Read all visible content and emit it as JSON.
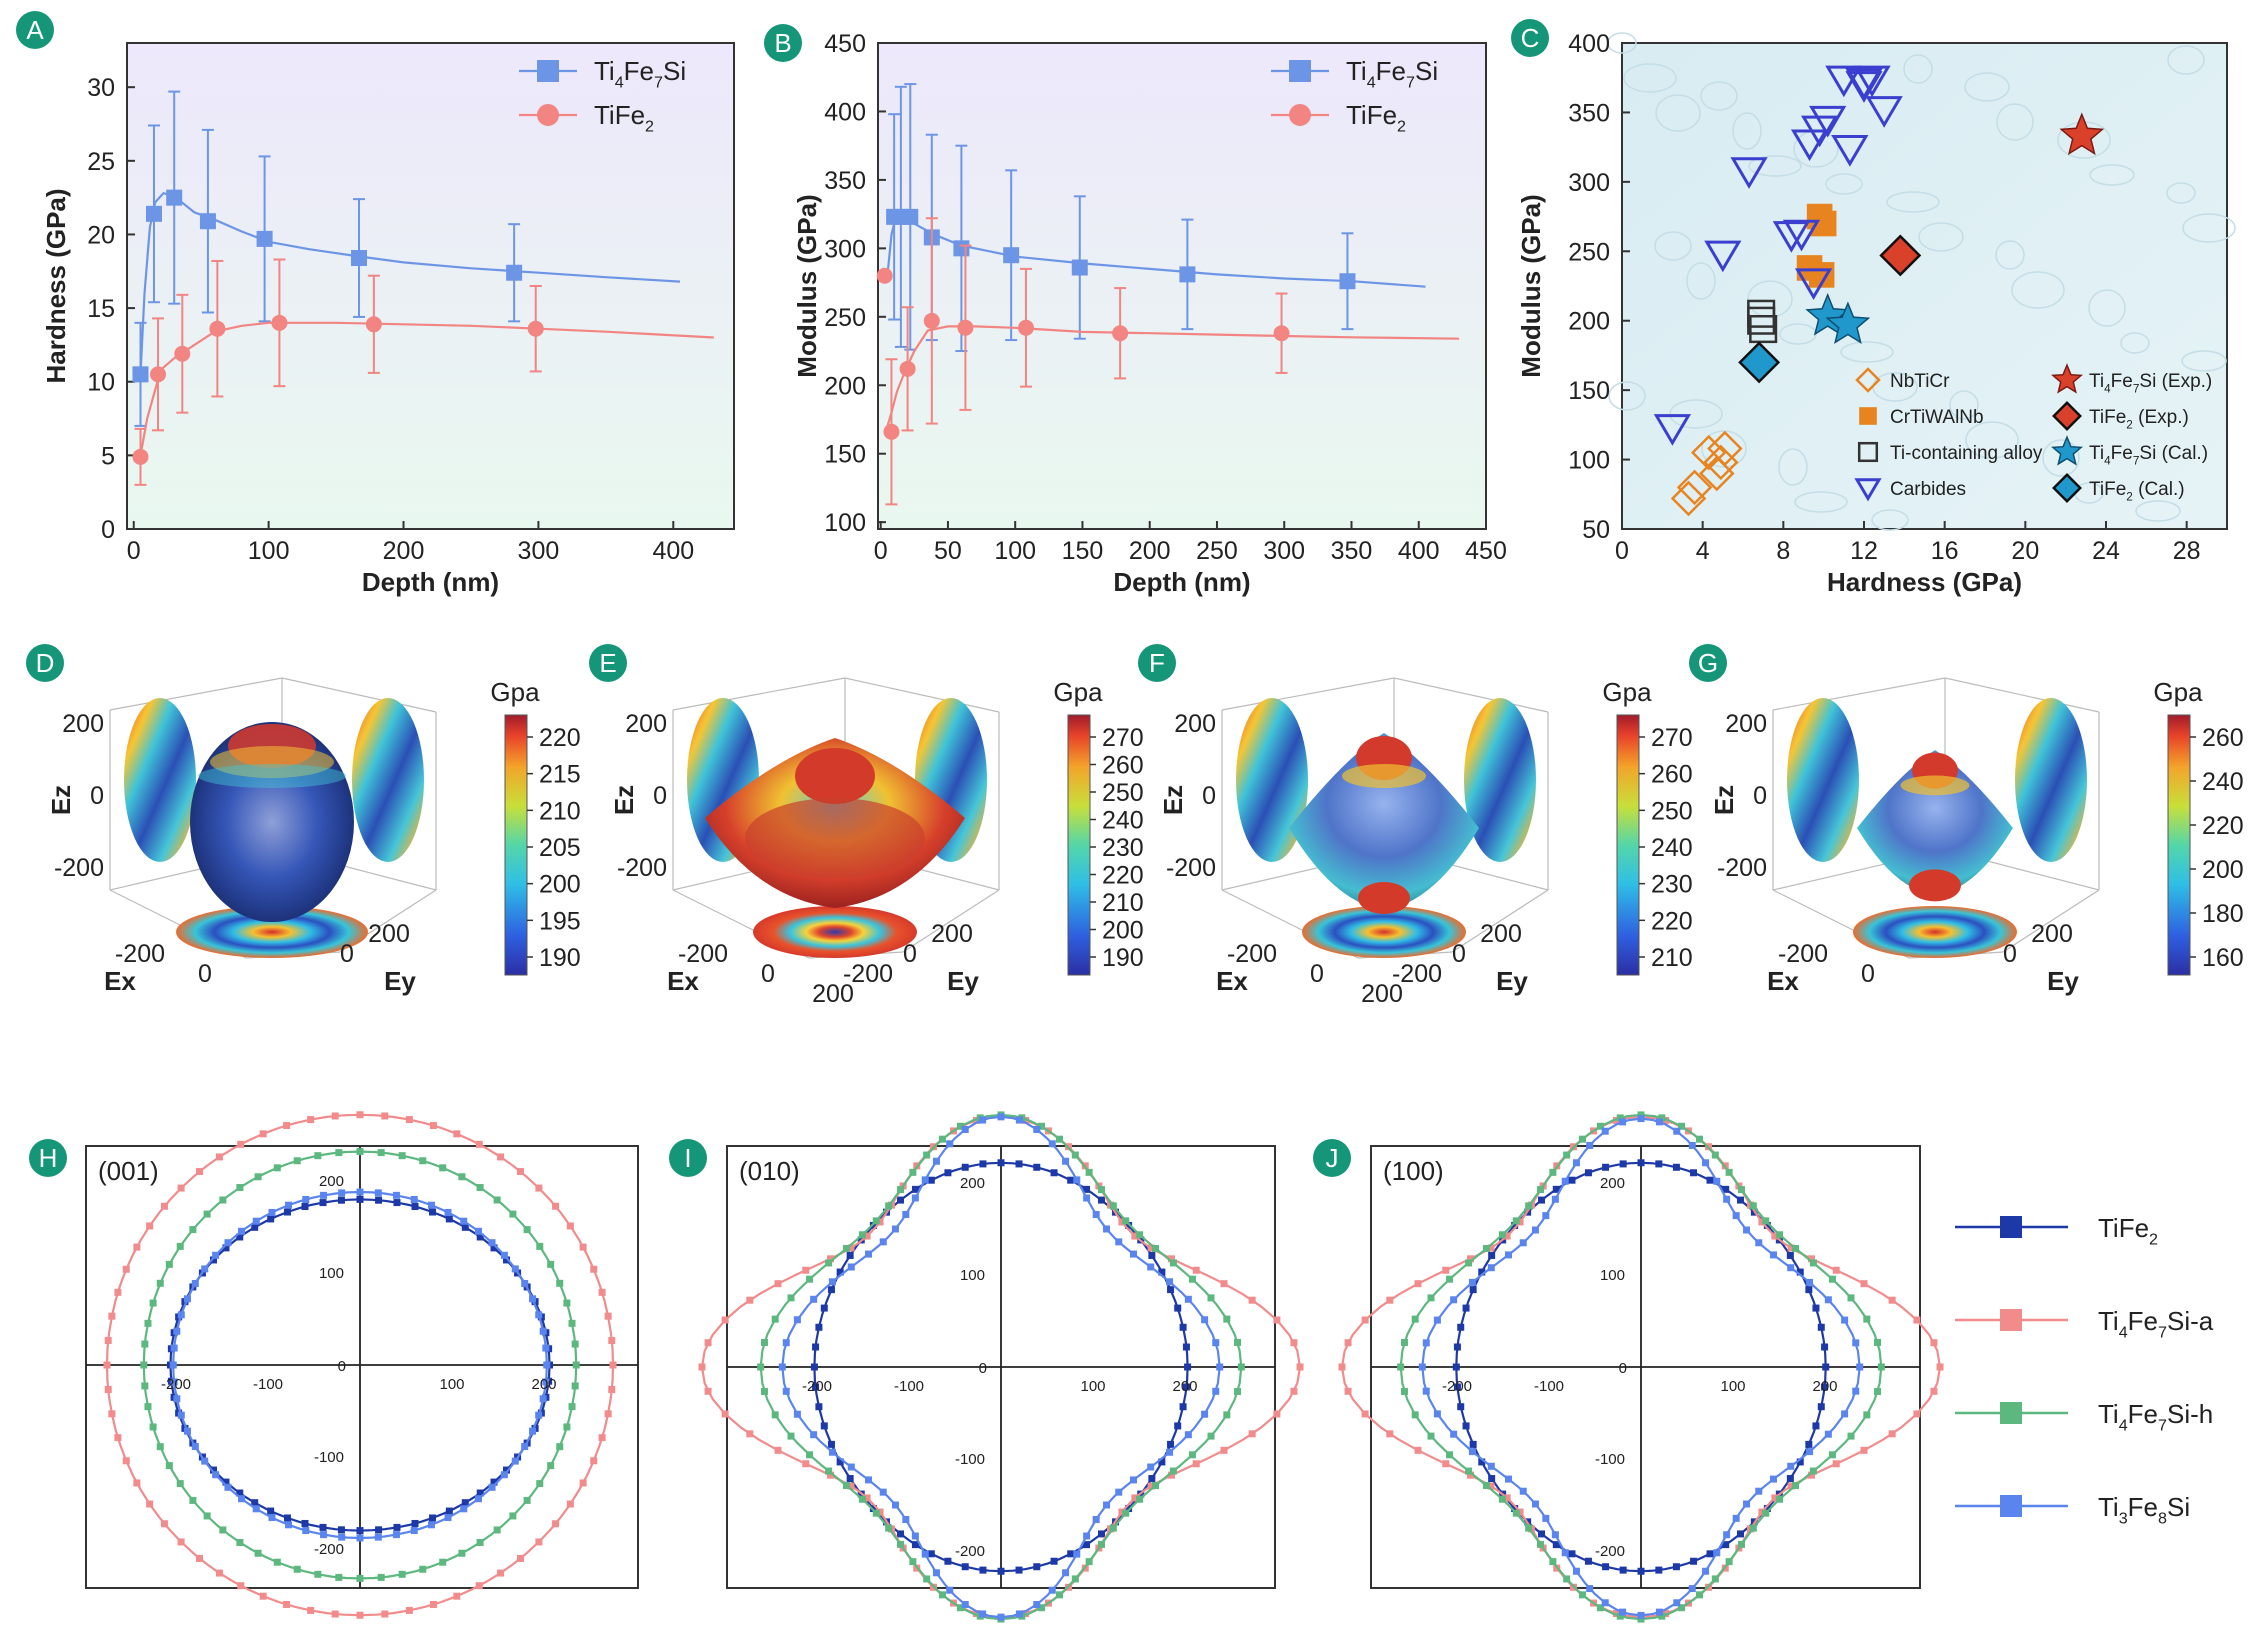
{
  "colors": {
    "badge": "#159678",
    "ti4fe7si": "#6d95e6",
    "tife2": "#f28482",
    "tife2_polar": "#1d39a8",
    "ti4fe7si_a": "#f28b8b",
    "ti4fe7si_h": "#5cb87f",
    "ti3fe8si": "#5a85ee",
    "carbides": "#3b3fd0",
    "orange": "#e8841f",
    "exp_star": "#d9412b",
    "cal_star": "#2098cc"
  },
  "panel_A": {
    "badge": "A",
    "chart_data": {
      "type": "line",
      "xlabel": "Depth (nm)",
      "ylabel": "Hardness (GPa)",
      "xlim": [
        -5,
        445
      ],
      "ylim": [
        0,
        33
      ],
      "xticks": [
        0,
        100,
        200,
        300,
        400
      ],
      "yticks": [
        0,
        5,
        10,
        15,
        20,
        25,
        30
      ],
      "legend_position": "top-right",
      "series": [
        {
          "name": "Ti4Fe7Si",
          "legend": [
            "Ti",
            "4",
            "Fe",
            "7",
            "Si"
          ],
          "curve_x": [
            5,
            8,
            12,
            16,
            22,
            30,
            45,
            60,
            80,
            100,
            130,
            160,
            200,
            250,
            300,
            350,
            405
          ],
          "curve_y": [
            10.5,
            16,
            20.5,
            22.2,
            22.8,
            22.6,
            21.5,
            21,
            20.2,
            19.5,
            19,
            18.6,
            18.1,
            17.7,
            17.4,
            17.1,
            16.8
          ],
          "points_x": [
            5,
            15,
            30,
            55,
            97,
            167,
            282
          ],
          "points_y": [
            10.5,
            21.4,
            22.5,
            20.9,
            19.7,
            18.4,
            17.4
          ],
          "err": [
            3.5,
            6,
            7.2,
            6.2,
            5.6,
            4,
            3.3
          ]
        },
        {
          "name": "TiFe2",
          "legend": [
            "TiFe",
            "2"
          ],
          "curve_x": [
            5,
            10,
            20,
            30,
            40,
            60,
            80,
            100,
            150,
            200,
            250,
            300,
            350,
            430
          ],
          "curve_y": [
            5,
            7.5,
            10.8,
            11.6,
            12.2,
            13.4,
            13.8,
            14,
            14,
            13.9,
            13.8,
            13.6,
            13.4,
            13
          ],
          "points_x": [
            5,
            18,
            36,
            62,
            108,
            178,
            298
          ],
          "points_y": [
            4.9,
            10.5,
            11.9,
            13.6,
            14,
            13.9,
            13.6
          ],
          "err": [
            1.9,
            3.8,
            4,
            4.6,
            4.3,
            3.3,
            2.9
          ]
        }
      ]
    }
  },
  "panel_B": {
    "badge": "B",
    "chart_data": {
      "type": "line",
      "xlabel": "Depth (nm)",
      "ylabel": "Modulus (GPa)",
      "xlim": [
        -2,
        450
      ],
      "ylim": [
        95,
        450
      ],
      "xticks": [
        0,
        50,
        100,
        150,
        200,
        250,
        300,
        350,
        400,
        450
      ],
      "yticks": [
        100,
        150,
        200,
        250,
        300,
        350,
        400,
        450
      ],
      "legend_position": "top-right",
      "series": [
        {
          "name": "Ti4Fe7Si",
          "legend": [
            "Ti",
            "4",
            "Fe",
            "7",
            "Si"
          ],
          "curve_x": [
            5,
            8,
            10,
            15,
            25,
            40,
            60,
            80,
            100,
            150,
            200,
            250,
            300,
            350,
            405
          ],
          "curve_y": [
            280,
            310,
            318,
            322,
            318,
            310,
            302,
            298,
            294,
            289,
            285,
            281,
            278,
            276,
            272
          ],
          "points_x": [
            10,
            15,
            22,
            38,
            60,
            97,
            148,
            228,
            347
          ],
          "points_y": [
            323,
            323,
            323,
            308,
            300,
            295,
            286,
            281,
            276
          ],
          "err": [
            75,
            95,
            97,
            75,
            75,
            62,
            52,
            40,
            35
          ]
        },
        {
          "name": "TiFe2",
          "legend": [
            "TiFe",
            "2"
          ],
          "curve_x": [
            5,
            8,
            12,
            18,
            25,
            35,
            50,
            70,
            100,
            150,
            200,
            250,
            300,
            350,
            430
          ],
          "curve_y": [
            170,
            180,
            195,
            210,
            225,
            240,
            243,
            243,
            242,
            239,
            238,
            237,
            236,
            235,
            234
          ],
          "points_x": [
            3,
            8,
            20,
            38,
            63,
            108,
            178,
            298
          ],
          "points_y": [
            280,
            166,
            212,
            247,
            242,
            242,
            238,
            238
          ],
          "err": [
            0,
            53,
            45,
            75,
            60,
            43,
            33,
            29
          ]
        }
      ]
    }
  },
  "panel_C": {
    "badge": "C",
    "chart_data": {
      "type": "scatter",
      "xlabel": "Hardness (GPa)",
      "ylabel": "Modulus (GPa)",
      "xlim": [
        0,
        30
      ],
      "ylim": [
        50,
        400
      ],
      "xticks": [
        0,
        4,
        8,
        12,
        16,
        20,
        24,
        28
      ],
      "yticks": [
        50,
        100,
        150,
        200,
        250,
        300,
        350,
        400
      ],
      "series": [
        {
          "name": "NbTiCr",
          "marker": "diamond-open",
          "x": [
            3.3,
            3.6,
            4.3,
            4.7,
            4.9,
            5.1
          ],
          "y": [
            72,
            80,
            105,
            90,
            98,
            108
          ]
        },
        {
          "name": "CrTiWAlNb",
          "marker": "square-filled",
          "x": [
            9.3,
            9.8,
            10.0,
            9.9
          ],
          "y": [
            238,
            275,
            270,
            233
          ]
        },
        {
          "name": "Ti-containing alloy",
          "marker": "square-open",
          "x": [
            6.9,
            6.9,
            7.0
          ],
          "y": [
            205,
            200,
            194
          ]
        },
        {
          "name": "Carbides",
          "marker": "triangle-open",
          "x": [
            2.5,
            5.0,
            6.3,
            8.4,
            8.9,
            9.3,
            9.8,
            10.2,
            9.5,
            11.0,
            11.3,
            12.0,
            12.4,
            13.0,
            12.0
          ],
          "y": [
            123,
            248,
            308,
            262,
            263,
            328,
            338,
            345,
            228,
            374,
            324,
            370,
            374,
            352,
            372
          ]
        },
        {
          "name": "Ti4Fe7Si (Exp.)",
          "legend": [
            "Ti",
            "4",
            "Fe",
            "7",
            "Si (Exp.)"
          ],
          "marker": "star-red",
          "x": [
            22.8
          ],
          "y": [
            333
          ]
        },
        {
          "name": "TiFe2 (Exp.)",
          "legend": [
            "TiFe",
            "2",
            " (Exp.)"
          ],
          "marker": "diamond-red",
          "x": [
            13.8
          ],
          "y": [
            247
          ]
        },
        {
          "name": "Ti4Fe7Si (Cal.)",
          "legend": [
            "Ti",
            "4",
            "Fe",
            "7",
            "Si (Cal.)"
          ],
          "marker": "star-blue",
          "x": [
            10.2,
            11.2
          ],
          "y": [
            203,
            197
          ]
        },
        {
          "name": "TiFe2 (Cal.)",
          "legend": [
            "TiFe",
            "2",
            " (Cal.)"
          ],
          "marker": "diamond-blue",
          "x": [
            6.8
          ],
          "y": [
            170
          ]
        }
      ]
    }
  },
  "panels_3d": [
    {
      "badge": "D",
      "unit": "Gpa",
      "ticks": [
        "220",
        "215",
        "210",
        "205",
        "200",
        "195",
        "190"
      ],
      "axes": {
        "ez": "Ez",
        "ex": "Ex",
        "ey": "Ey"
      },
      "ez_ticks": [
        "200",
        "0",
        "-200"
      ],
      "ex_ticks": [
        "-200",
        "0"
      ],
      "ey_ticks": [
        "0",
        "200"
      ]
    },
    {
      "badge": "E",
      "unit": "Gpa",
      "ticks": [
        "270",
        "260",
        "250",
        "240",
        "230",
        "220",
        "210",
        "200",
        "190"
      ],
      "axes": {
        "ez": "Ez",
        "ex": "Ex",
        "ey": "Ey"
      },
      "ez_ticks": [
        "200",
        "0",
        "-200"
      ],
      "ex_ticks": [
        "-200",
        "0",
        "200"
      ],
      "ey_ticks": [
        "-200",
        "0",
        "200"
      ]
    },
    {
      "badge": "F",
      "unit": "Gpa",
      "ticks": [
        "270",
        "260",
        "250",
        "240",
        "230",
        "220",
        "210"
      ],
      "axes": {
        "ez": "Ez",
        "ex": "Ex",
        "ey": "Ey"
      },
      "ez_ticks": [
        "200",
        "0",
        "-200"
      ],
      "ex_ticks": [
        "-200",
        "0",
        "200"
      ],
      "ey_ticks": [
        "-200",
        "0",
        "200"
      ]
    },
    {
      "badge": "G",
      "unit": "Gpa",
      "ticks": [
        "260",
        "240",
        "220",
        "200",
        "180",
        "160"
      ],
      "axes": {
        "ez": "Ez",
        "ex": "Ex",
        "ey": "Ey"
      },
      "ez_ticks": [
        "200",
        "0",
        "-200"
      ],
      "ex_ticks": [
        "-200",
        "0"
      ],
      "ey_ticks": [
        "0",
        "200"
      ]
    }
  ],
  "polar_panels": [
    {
      "badge": "H",
      "plane": "(001)",
      "ticks_pos": [
        "100",
        "200"
      ],
      "ticks_neg": [
        "-100",
        "-200"
      ],
      "tick_zero": "0"
    },
    {
      "badge": "I",
      "plane": "(010)",
      "ticks_pos": [
        "100",
        "200"
      ],
      "ticks_neg": [
        "-100",
        "-200"
      ],
      "tick_zero": "0"
    },
    {
      "badge": "J",
      "plane": "(100)",
      "ticks_pos": [
        "100",
        "200"
      ],
      "ticks_neg": [
        "-100",
        "-200"
      ],
      "tick_zero": "0"
    }
  ],
  "polar_chart_data": {
    "type": "line",
    "series": [
      {
        "name": "TiFe2",
        "legend": [
          "TiFe",
          "2"
        ],
        "H": {
          "a": 206,
          "b": 180,
          "amp": 0
        },
        "I": {
          "a": 200,
          "b": 222,
          "amp": 0.02
        },
        "J": {
          "a": 198,
          "b": 222,
          "amp": 0.02
        }
      },
      {
        "name": "Ti4Fe7Si-a",
        "legend": [
          "Ti",
          "4",
          "Fe",
          "7",
          "Si-a"
        ],
        "H": {
          "a": 275,
          "b": 272,
          "amp": 0
        },
        "I": {
          "a": 275,
          "b": 272,
          "amp": 0.26
        },
        "J": {
          "a": 275,
          "b": 272,
          "amp": 0.26
        }
      },
      {
        "name": "Ti4Fe7Si-h",
        "legend": [
          "Ti",
          "4",
          "Fe",
          "7",
          "Si-h"
        ],
        "H": {
          "a": 235,
          "b": 232,
          "amp": 0
        },
        "I": {
          "a": 232,
          "b": 274,
          "amp": 0.18
        },
        "J": {
          "a": 232,
          "b": 274,
          "amp": 0.18
        }
      },
      {
        "name": "Ti3Fe8Si",
        "legend": [
          "Ti",
          "3",
          "Fe",
          "8",
          "Si"
        ],
        "H": {
          "a": 203,
          "b": 188,
          "amp": 0
        },
        "I": {
          "a": 206,
          "b": 272,
          "amp": 0.22
        },
        "J": {
          "a": 206,
          "b": 270,
          "amp": 0.22
        }
      }
    ]
  }
}
